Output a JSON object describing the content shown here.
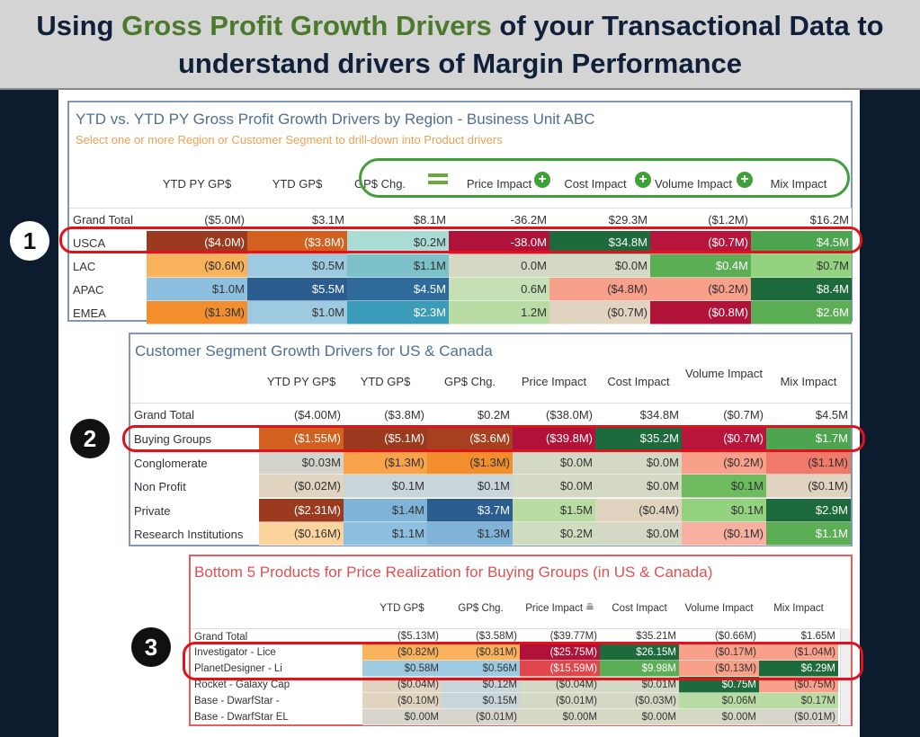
{
  "header": {
    "title_part1": "Using ",
    "title_highlight": "Gross Profit Growth Drivers",
    "title_part2": " of your Transactional Data to understand drivers of Margin Performance"
  },
  "badges": [
    "1",
    "2",
    "3"
  ],
  "panel1": {
    "title": "YTD vs. YTD PY Gross Profit Growth Drivers by Region -  Business Unit ABC",
    "subtitle": "Select one or more Region or Customer Segment to drill-down into Product drivers",
    "columns": [
      "YTD PY GP$",
      "YTD GP$",
      "GP$ Chg.",
      "Price Impact",
      "Cost Impact",
      "Volume Impact",
      "Mix Impact"
    ],
    "rows": [
      {
        "label": "Grand Total",
        "cells": [
          [
            "($5.0M)",
            "#ffffff"
          ],
          [
            "$3.1M",
            "#ffffff"
          ],
          [
            "$8.1M",
            "#ffffff"
          ],
          [
            "-36.2M",
            "#ffffff"
          ],
          [
            "$29.3M",
            "#ffffff"
          ],
          [
            "($1.2M)",
            "#ffffff"
          ],
          [
            "$16.2M",
            "#ffffff"
          ]
        ]
      },
      {
        "label": "USCA",
        "cells": [
          [
            "($4.0M)",
            "#9b3a1f"
          ],
          [
            "($3.8M)",
            "#d2601f"
          ],
          [
            "$0.2M",
            "#a8dcd4"
          ],
          [
            "-38.0M",
            "#b0123a"
          ],
          [
            "$34.8M",
            "#1d6b3c"
          ],
          [
            "($0.7M)",
            "#b8153c"
          ],
          [
            "$4.5M",
            "#4ea54f"
          ]
        ]
      },
      {
        "label": "LAC",
        "cells": [
          [
            "($0.6M)",
            "#f9b25c"
          ],
          [
            "$0.5M",
            "#9ecae1"
          ],
          [
            "$1.1M",
            "#7cc0c8"
          ],
          [
            "0.0M",
            "#d4d9c6"
          ],
          [
            "$0.0M",
            "#d4d9c6"
          ],
          [
            "$0.4M",
            "#5cae55"
          ],
          [
            "$0.7M",
            "#93d27f"
          ]
        ]
      },
      {
        "label": "APAC",
        "cells": [
          [
            "$1.0M",
            "#8cbfe0"
          ],
          [
            "$5.5M",
            "#2c5d8f"
          ],
          [
            "$4.5M",
            "#2e6a9a"
          ],
          [
            "0.6M",
            "#c4e0b4"
          ],
          [
            "($4.8M)",
            "#f9a08a"
          ],
          [
            "($0.2M)",
            "#f9a08a"
          ],
          [
            "$8.4M",
            "#1d6b3c"
          ]
        ]
      },
      {
        "label": "EMEA",
        "cells": [
          [
            "($1.3M)",
            "#f28e2b"
          ],
          [
            "$1.0M",
            "#9ecae1"
          ],
          [
            "$2.3M",
            "#3a9cb8"
          ],
          [
            "1.2M",
            "#b8dca4"
          ],
          [
            "($0.7M)",
            "#e0d3c0"
          ],
          [
            "($0.8M)",
            "#b0123a"
          ],
          [
            "$2.6M",
            "#5cae55"
          ]
        ]
      }
    ]
  },
  "panel2": {
    "title": "Customer Segment Growth Drivers for US & Canada",
    "columns": [
      "YTD PY GP$",
      "YTD GP$",
      "GP$ Chg.",
      "Price Impact",
      "Cost Impact",
      "Volume Impact",
      "Mix Impact"
    ],
    "rows": [
      {
        "label": "Grand Total",
        "cells": [
          [
            "($4.00M)",
            "#ffffff"
          ],
          [
            "($3.8M)",
            "#ffffff"
          ],
          [
            "$0.2M",
            "#ffffff"
          ],
          [
            "($38.0M)",
            "#ffffff"
          ],
          [
            "$34.8M",
            "#ffffff"
          ],
          [
            "($0.7M)",
            "#ffffff"
          ],
          [
            "$4.5M",
            "#ffffff"
          ]
        ]
      },
      {
        "label": "Buying Groups",
        "cells": [
          [
            "($1.55M)",
            "#d2601f"
          ],
          [
            "($5.1M)",
            "#9b3a1f"
          ],
          [
            "($3.6M)",
            "#a8401f"
          ],
          [
            "($39.8M)",
            "#b0123a"
          ],
          [
            "$35.2M",
            "#1d6b3c"
          ],
          [
            "($0.7M)",
            "#b8153c"
          ],
          [
            "$1.7M",
            "#4ea54f"
          ]
        ]
      },
      {
        "label": "Conglomerate",
        "cells": [
          [
            "$0.03M",
            "#d4d4cc"
          ],
          [
            "($1.3M)",
            "#f8a24a"
          ],
          [
            "($1.3M)",
            "#f28e2b"
          ],
          [
            "$0.0M",
            "#d4d9c6"
          ],
          [
            "$0.0M",
            "#d4d9c6"
          ],
          [
            "($0.2M)",
            "#f9a08a"
          ],
          [
            "($1.1M)",
            "#f07a6a"
          ]
        ]
      },
      {
        "label": "Non Profit",
        "cells": [
          [
            "($0.02M)",
            "#e0d3c0"
          ],
          [
            "$0.1M",
            "#c9d6d9"
          ],
          [
            "$0.1M",
            "#c9d6d9"
          ],
          [
            "$0.0M",
            "#d4d9c6"
          ],
          [
            "$0.0M",
            "#d4d9c6"
          ],
          [
            "$0.1M",
            "#6dbb5e"
          ],
          [
            "($0.1M)",
            "#e0d3c0"
          ]
        ]
      },
      {
        "label": "Private",
        "cells": [
          [
            "($2.31M)",
            "#9b3a1f"
          ],
          [
            "$1.4M",
            "#7fb3d8"
          ],
          [
            "$3.7M",
            "#2c5d8f"
          ],
          [
            "$1.5M",
            "#b8dca4"
          ],
          [
            "($0.4M)",
            "#e0d3c0"
          ],
          [
            "$0.1M",
            "#93d27f"
          ],
          [
            "$2.9M",
            "#1d6b3c"
          ]
        ]
      },
      {
        "label": "Research Institutions",
        "cells": [
          [
            "($0.16M)",
            "#fdd49e"
          ],
          [
            "$1.1M",
            "#8cbfe0"
          ],
          [
            "$1.3M",
            "#7fb3d8"
          ],
          [
            "$0.2M",
            "#d0dcc0"
          ],
          [
            "$0.0M",
            "#d4d9c6"
          ],
          [
            "($0.1M)",
            "#f9b0a0"
          ],
          [
            "$1.1M",
            "#5cae55"
          ]
        ]
      }
    ]
  },
  "panel3": {
    "title": "Bottom 5 Products for Price Realization for Buying Groups (in US & Canada)",
    "columns": [
      "YTD GP$",
      "GP$ Chg.",
      "Price Impact",
      "Cost Impact",
      "Volume Impact",
      "Mix Impact"
    ],
    "sort_icon": "sort-descending-icon",
    "rows": [
      {
        "label": "Grand Total",
        "cells": [
          [
            "($5.13M)",
            "#ffffff"
          ],
          [
            "($3.58M)",
            "#ffffff"
          ],
          [
            "($39.77M)",
            "#ffffff"
          ],
          [
            "$35.21M",
            "#ffffff"
          ],
          [
            "($0.66M)",
            "#ffffff"
          ],
          [
            "$1.65M",
            "#ffffff"
          ]
        ]
      },
      {
        "label": "Investigator - Lice",
        "cells": [
          [
            "($0.82M)",
            "#f9b25c"
          ],
          [
            "($0.81M)",
            "#f9b25c"
          ],
          [
            "($25.75M)",
            "#b0123a"
          ],
          [
            "$26.15M",
            "#1d6b3c"
          ],
          [
            "($0.17M)",
            "#f9a08a"
          ],
          [
            "($1.04M)",
            "#f9a08a"
          ]
        ]
      },
      {
        "label": "PlanetDesigner - Li",
        "cells": [
          [
            "$0.58M",
            "#9ecae1"
          ],
          [
            "$0.56M",
            "#9ecae1"
          ],
          [
            "($15.59M)",
            "#e0464a"
          ],
          [
            "$9.98M",
            "#5cae55"
          ],
          [
            "($0.13M)",
            "#f9a08a"
          ],
          [
            "$6.29M",
            "#1d6b3c"
          ]
        ]
      },
      {
        "label": "Rocket - Galaxy Cap",
        "cells": [
          [
            "($0.04M)",
            "#e0d3c0"
          ],
          [
            "$0.12M",
            "#c9d6d9"
          ],
          [
            "($0.04M)",
            "#d4d9c6"
          ],
          [
            "$0.01M",
            "#d4d9c6"
          ],
          [
            "$0.75M",
            "#1d6b3c"
          ],
          [
            "($0.75M)",
            "#f9a08a"
          ]
        ]
      },
      {
        "label": "Base - DwarfStar -",
        "cells": [
          [
            "($0.10M)",
            "#e0d3c0"
          ],
          [
            "$0.15M",
            "#c9d6d9"
          ],
          [
            "($0.01M)",
            "#d4d9c6"
          ],
          [
            "($0.03M)",
            "#d4d9c6"
          ],
          [
            "$0.06M",
            "#b8dca4"
          ],
          [
            "$0.17M",
            "#b8dca4"
          ]
        ]
      },
      {
        "label": "Base - DwarfStar EL",
        "cells": [
          [
            "$0.00M",
            "#d8d6cc"
          ],
          [
            "($0.01M)",
            "#d8d6cc"
          ],
          [
            "$0.00M",
            "#d4d9c6"
          ],
          [
            "$0.00M",
            "#d4d9c6"
          ],
          [
            "$0.00M",
            "#d4d9c6"
          ],
          [
            "($0.01M)",
            "#d8d6cc"
          ]
        ]
      }
    ]
  }
}
